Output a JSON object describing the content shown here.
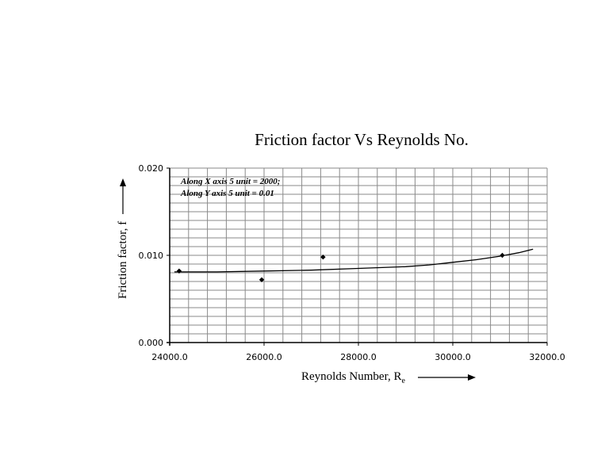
{
  "chart_data": {
    "type": "scatter",
    "title": "Friction factor  Vs  Reynolds No.",
    "xlabel": "Reynolds Number, R",
    "xlabel_sub": "e",
    "ylabel": "Friction factor, f",
    "xlim": [
      24000,
      32000
    ],
    "ylim": [
      0,
      0.02
    ],
    "x_ticks": [
      24000,
      26000,
      28000,
      30000,
      32000
    ],
    "x_tick_labels": [
      "24000.0",
      "26000.0",
      "28000.0",
      "30000.0",
      "32000.0"
    ],
    "y_ticks": [
      0,
      0.01,
      0.02
    ],
    "y_tick_labels": [
      "0.000",
      "0.010",
      "0.020"
    ],
    "x_minor_step": 400,
    "y_minor_step": 0.001,
    "grid": true,
    "annotations": [
      "Along X axis 5 unit = 2000;",
      "Along Y axis 5 unit = 0.01"
    ],
    "series": [
      {
        "type": "scatter",
        "marker": "diamond",
        "x": [
          24200,
          25950,
          27250,
          31050
        ],
        "y": [
          0.0082,
          0.0072,
          0.0098,
          0.01
        ]
      },
      {
        "type": "line",
        "x": [
          24100,
          25000,
          26000,
          27000,
          28000,
          29000,
          29500,
          30000,
          30500,
          31000,
          31400,
          31700
        ],
        "y": [
          0.0081,
          0.0081,
          0.0082,
          0.0083,
          0.0085,
          0.0087,
          0.0089,
          0.0092,
          0.0095,
          0.0099,
          0.0103,
          0.0107
        ]
      }
    ]
  }
}
